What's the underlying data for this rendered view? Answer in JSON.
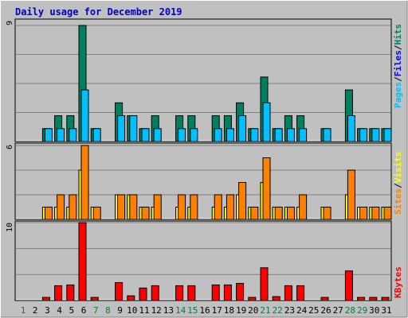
{
  "chart_data": [
    {
      "type": "bar",
      "title": "Daily usage for December 2019",
      "categories": [
        "1",
        "2",
        "3",
        "4",
        "5",
        "6",
        "7",
        "8",
        "9",
        "10",
        "11",
        "12",
        "13",
        "14",
        "15",
        "16",
        "17",
        "18",
        "19",
        "20",
        "21",
        "22",
        "23",
        "24",
        "25",
        "26",
        "27",
        "28",
        "29",
        "30",
        "31"
      ],
      "weekend_days": [
        "1",
        "7",
        "8",
        "14",
        "15",
        "21",
        "22",
        "28",
        "29"
      ],
      "ymax_label": "9",
      "series": [
        {
          "name": "Hits",
          "color": "#008060",
          "values": [
            0,
            0,
            1,
            2,
            2,
            9,
            1,
            0,
            3,
            2,
            1,
            2,
            0,
            2,
            2,
            0,
            2,
            2,
            3,
            1,
            5,
            1,
            2,
            2,
            0,
            1,
            0,
            4,
            1,
            1,
            1
          ]
        },
        {
          "name": "Files",
          "color": "#00c0ff",
          "values": [
            0,
            0,
            1,
            1,
            1,
            4,
            1,
            0,
            2,
            2,
            1,
            1,
            0,
            1,
            1,
            0,
            1,
            1,
            2,
            1,
            3,
            1,
            1,
            1,
            0,
            1,
            0,
            2,
            1,
            1,
            1
          ]
        },
        {
          "name": "Pages",
          "color": "#00c0ff",
          "values": [
            0,
            0,
            0,
            0,
            0,
            0,
            0,
            0,
            0,
            0,
            0,
            0,
            0,
            0,
            0,
            0,
            0,
            0,
            0,
            0,
            0,
            0,
            0,
            0,
            0,
            0,
            0,
            0,
            0,
            0,
            0
          ]
        }
      ],
      "legend": [
        "Pages",
        "Files",
        "Hits"
      ],
      "legend_colors": [
        "#00c0ff",
        "#0000ff",
        "#008060"
      ]
    },
    {
      "type": "bar",
      "ymax_label": "6",
      "series": [
        {
          "name": "Visits",
          "color": "#ffff00",
          "values": [
            0,
            0,
            1,
            1,
            1,
            4,
            1,
            0,
            2,
            2,
            1,
            1,
            0,
            1,
            1,
            0,
            1,
            1,
            2,
            1,
            3,
            1,
            1,
            1,
            0,
            1,
            0,
            2,
            1,
            1,
            1
          ]
        },
        {
          "name": "Sites",
          "color": "#ff8000",
          "values": [
            0,
            0,
            1,
            2,
            2,
            6,
            1,
            0,
            2,
            2,
            1,
            2,
            0,
            2,
            2,
            0,
            2,
            2,
            3,
            1,
            5,
            1,
            1,
            2,
            0,
            1,
            0,
            4,
            1,
            1,
            1
          ]
        }
      ],
      "legend": [
        "Sites",
        "Visits"
      ],
      "legend_colors": [
        "#ff8000",
        "#ffff00"
      ]
    },
    {
      "type": "bar",
      "ymax_label": "10",
      "series": [
        {
          "name": "KBytes",
          "color": "#ff0000",
          "values": [
            0,
            0,
            0.4,
            1.9,
            2.0,
            10.0,
            0.4,
            0,
            2.3,
            0.6,
            1.6,
            1.9,
            0,
            1.9,
            1.9,
            0,
            2.0,
            2.0,
            2.2,
            0.4,
            4.2,
            0.5,
            1.9,
            1.9,
            0,
            0.4,
            0,
            3.8,
            0.4,
            0.4,
            0.4
          ]
        }
      ],
      "legend": [
        "KBytes"
      ],
      "legend_colors": [
        "#ff0000"
      ]
    }
  ]
}
